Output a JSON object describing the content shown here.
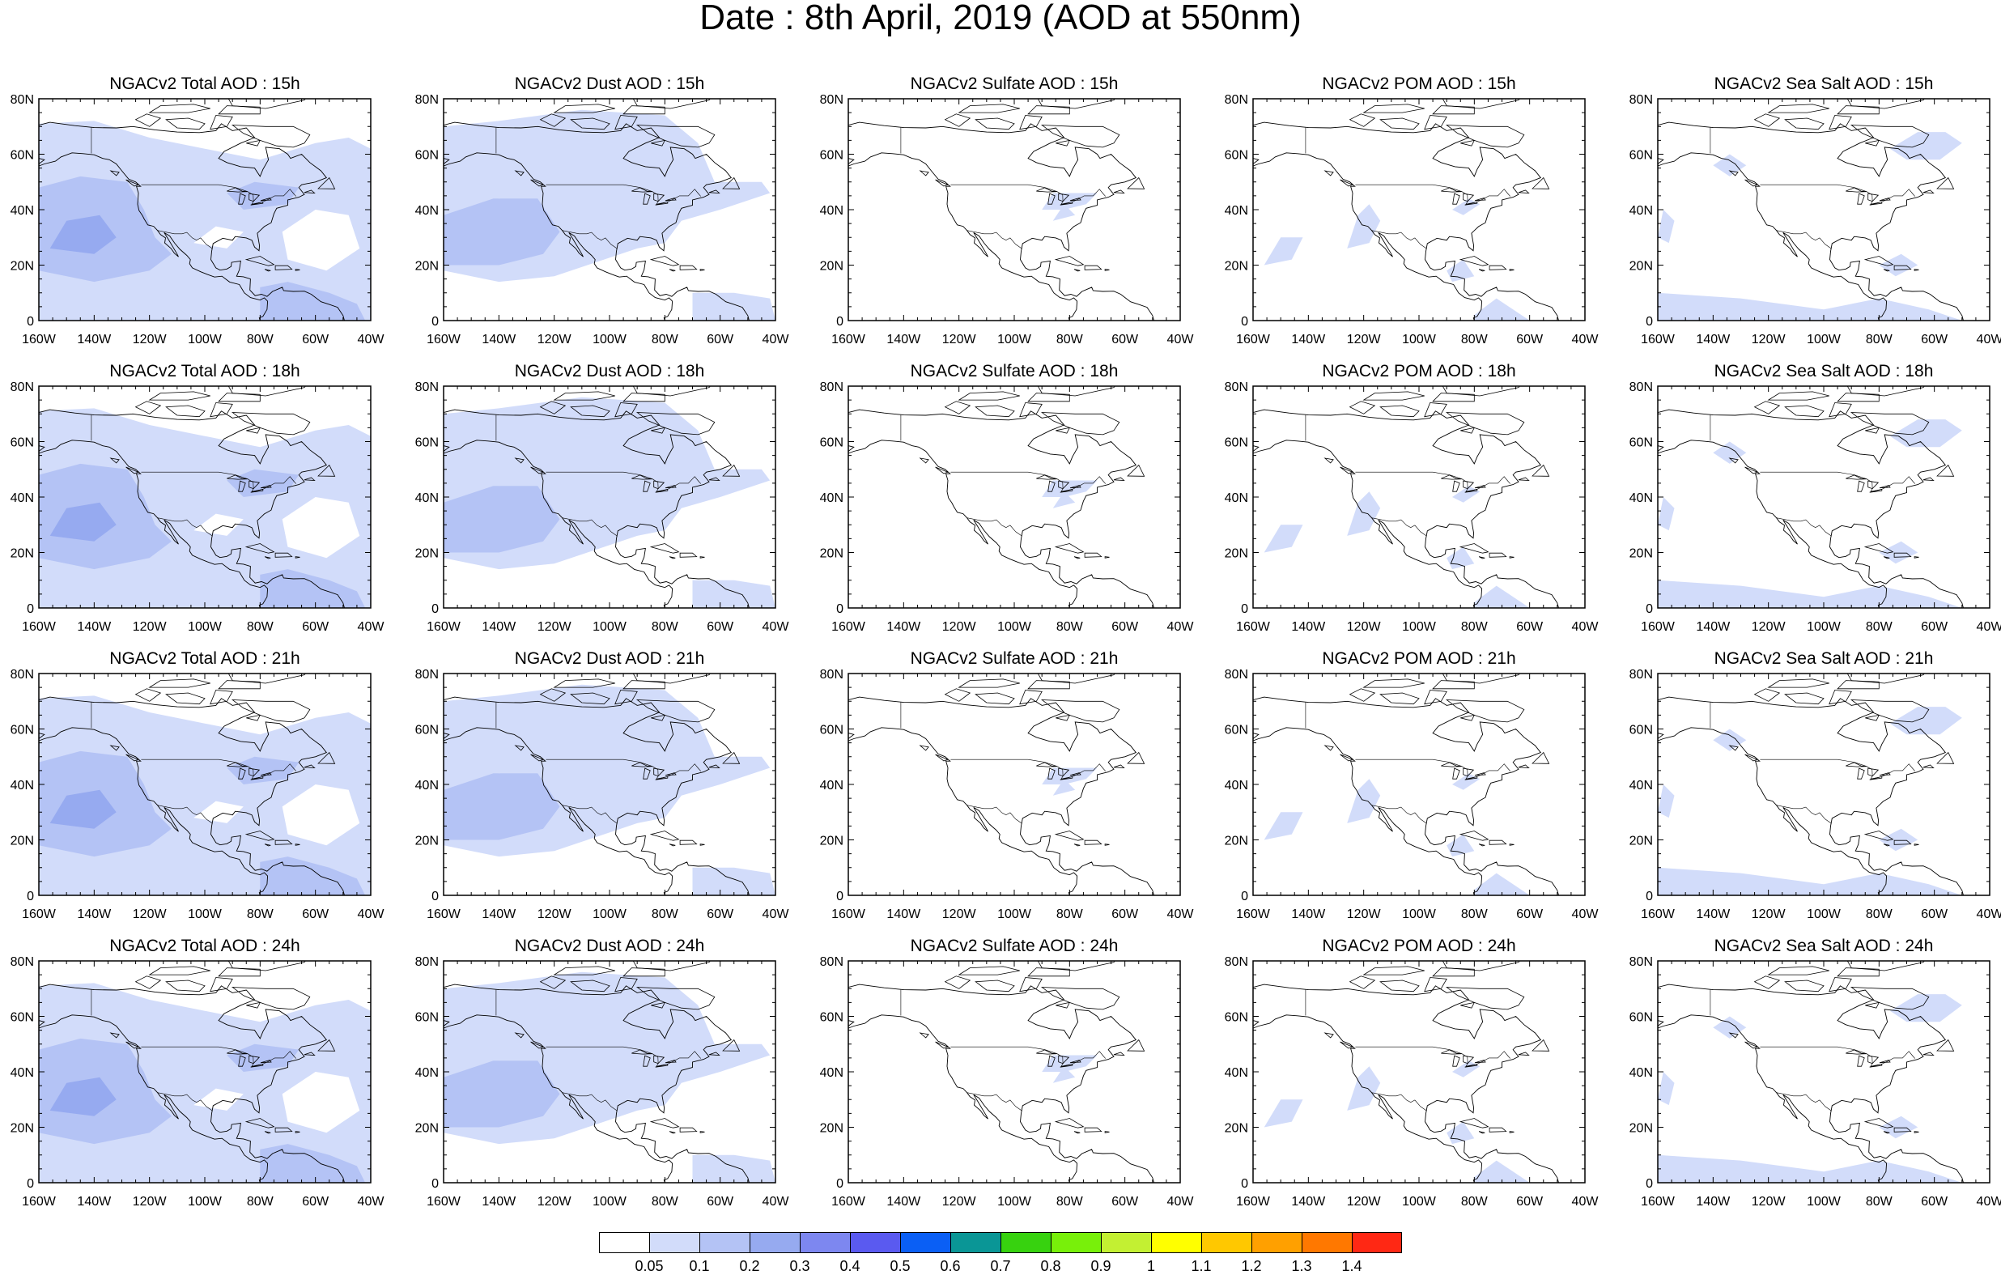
{
  "title": "Date : 8th April, 2019 (AOD at 550nm)",
  "rows": [
    {
      "hour": "15h",
      "titles": [
        "NGACv2 Total AOD : 15h",
        "NGACv2 Dust AOD : 15h",
        "NGACv2 Sulfate AOD : 15h",
        "NGACv2 POM AOD : 15h",
        "NGACv2 Sea Salt AOD : 15h"
      ]
    },
    {
      "hour": "18h",
      "titles": [
        "NGACv2 Total AOD : 18h",
        "NGACv2 Dust AOD : 18h",
        "NGACv2 Sulfate AOD : 18h",
        "NGACv2 POM AOD : 18h",
        "NGACv2 Sea Salt AOD : 18h"
      ]
    },
    {
      "hour": "21h",
      "titles": [
        "NGACv2 Total AOD : 21h",
        "NGACv2 Dust AOD : 21h",
        "NGACv2 Sulfate AOD : 21h",
        "NGACv2 POM AOD : 21h",
        "NGACv2 Sea Salt AOD : 21h"
      ]
    },
    {
      "hour": "24h",
      "titles": [
        "NGACv2 Total AOD : 24h",
        "NGACv2 Dust AOD : 24h",
        "NGACv2 Sulfate AOD : 24h",
        "NGACv2 POM AOD : 24h",
        "NGACv2 Sea Salt  AOD : 24h"
      ]
    }
  ],
  "species": [
    "Total",
    "Dust",
    "Sulfate",
    "POM",
    "Sea Salt"
  ],
  "map": {
    "lon_range": [
      -160,
      -40
    ],
    "lat_range": [
      0,
      80
    ],
    "lon_ticks": [
      "160W",
      "140W",
      "120W",
      "100W",
      "80W",
      "60W",
      "40W"
    ],
    "lat_ticks": [
      "0",
      "20N",
      "40N",
      "60N",
      "80N"
    ],
    "land_outline_color": "#000000"
  },
  "legend": {
    "labels": [
      "0.05",
      "0.1",
      "0.2",
      "0.3",
      "0.4",
      "0.5",
      "0.6",
      "0.7",
      "0.8",
      "0.9",
      "1",
      "1.1",
      "1.2",
      "1.3",
      "1.4"
    ],
    "colors": [
      "#ffffff",
      "#d2dcfa",
      "#b4c3f5",
      "#96aaf0",
      "#7d87f0",
      "#5a5af0",
      "#0a5ff5",
      "#0a9696",
      "#37d20f",
      "#78f00a",
      "#c3f032",
      "#ffff00",
      "#ffc800",
      "#ffa000",
      "#ff7800",
      "#ff2814"
    ]
  }
}
